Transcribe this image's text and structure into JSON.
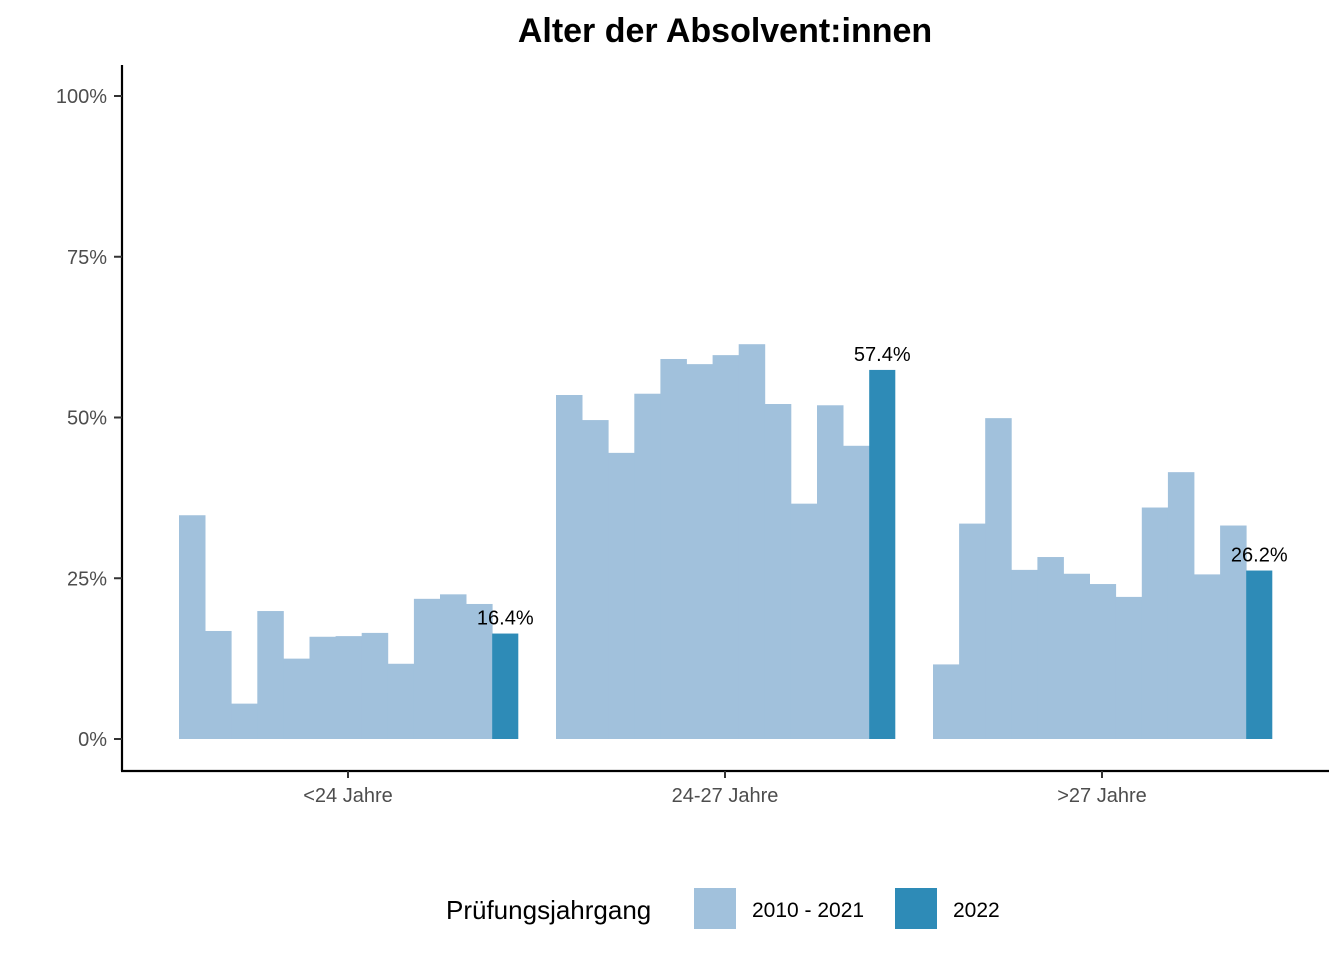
{
  "chart_data": {
    "type": "bar",
    "title": "Alter der Absolvent:innen",
    "xlabel": "",
    "ylabel": "",
    "ylim": [
      0,
      100
    ],
    "y_ticks": [
      0,
      25,
      50,
      75,
      100
    ],
    "y_tick_labels": [
      "0%",
      "25%",
      "50%",
      "75%",
      "100%"
    ],
    "categories": [
      "<24 Jahre",
      "24-27 Jahre",
      ">27 Jahre"
    ],
    "grid": false,
    "legend": {
      "title": "Prüfungsjahrgang",
      "placement": "bottom",
      "entries": [
        {
          "label": "2010 - 2021",
          "color": "#a1c1dc"
        },
        {
          "label": "2022",
          "color": "#2e8bb7"
        }
      ]
    },
    "series": [
      {
        "name": "2010 - 2021",
        "color": "#a1c1dc",
        "years_per_category": 12,
        "values": [
          [
            34.8,
            16.8,
            5.5,
            19.9,
            12.5,
            15.9,
            16.0,
            16.5,
            11.7,
            21.8,
            22.5,
            21.0
          ],
          [
            53.5,
            49.6,
            44.5,
            53.7,
            59.1,
            58.3,
            59.7,
            61.4,
            52.1,
            36.6,
            51.9,
            45.6
          ],
          [
            11.6,
            33.5,
            49.9,
            26.3,
            28.3,
            25.7,
            24.1,
            22.1,
            36.0,
            41.5,
            25.6,
            33.2
          ]
        ]
      },
      {
        "name": "2022",
        "color": "#2e8bb7",
        "values": [
          16.4,
          57.4,
          26.2
        ],
        "value_labels": [
          "16.4%",
          "57.4%",
          "26.2%"
        ]
      }
    ]
  }
}
